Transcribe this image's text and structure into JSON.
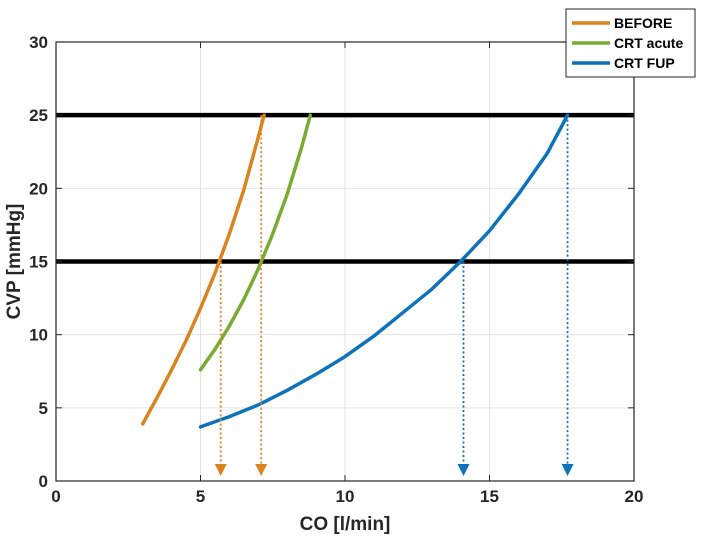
{
  "chart_data": {
    "type": "line",
    "xlabel": "CO [l/min]",
    "ylabel": "CVP [mmHg]",
    "xlim": [
      0,
      20
    ],
    "ylim": [
      0,
      30
    ],
    "x_ticks": [
      "0",
      "5",
      "10",
      "15",
      "20"
    ],
    "y_ticks": [
      "0",
      "5",
      "10",
      "15",
      "20",
      "25",
      "30"
    ],
    "grid": true,
    "legend_position": "top-right",
    "series": [
      {
        "name": "BEFORE",
        "color": "#D9841F",
        "points": [
          [
            3.0,
            3.9
          ],
          [
            3.5,
            5.7
          ],
          [
            4.0,
            7.6
          ],
          [
            4.5,
            9.6
          ],
          [
            5.0,
            11.8
          ],
          [
            5.5,
            14.2
          ],
          [
            6.0,
            16.9
          ],
          [
            6.5,
            19.9
          ],
          [
            7.0,
            23.5
          ],
          [
            7.2,
            25.0
          ]
        ]
      },
      {
        "name": "CRT acute",
        "color": "#77AC30",
        "points": [
          [
            5.0,
            7.6
          ],
          [
            5.5,
            9.0
          ],
          [
            6.0,
            10.6
          ],
          [
            6.5,
            12.4
          ],
          [
            7.0,
            14.5
          ],
          [
            7.5,
            16.9
          ],
          [
            8.0,
            19.6
          ],
          [
            8.5,
            22.8
          ],
          [
            8.8,
            25.0
          ]
        ]
      },
      {
        "name": "CRT FUP",
        "color": "#0C72BA",
        "points": [
          [
            5.0,
            3.7
          ],
          [
            6.0,
            4.4
          ],
          [
            7.0,
            5.2
          ],
          [
            8.0,
            6.2
          ],
          [
            9.0,
            7.3
          ],
          [
            10.0,
            8.5
          ],
          [
            11.0,
            9.9
          ],
          [
            12.0,
            11.5
          ],
          [
            13.0,
            13.1
          ],
          [
            14.0,
            15.0
          ],
          [
            15.0,
            17.1
          ],
          [
            16.0,
            19.6
          ],
          [
            17.0,
            22.4
          ],
          [
            17.7,
            25.0
          ]
        ]
      }
    ],
    "reference_lines": [
      {
        "y": 15,
        "color": "#000000"
      },
      {
        "y": 25,
        "color": "#000000"
      }
    ],
    "dotted_arrows": [
      {
        "series": "BEFORE",
        "x": 5.7,
        "y_from": 15,
        "color": "#D9841F"
      },
      {
        "series": "BEFORE",
        "x": 7.1,
        "y_from": 25,
        "color": "#D9841F"
      },
      {
        "series": "CRT FUP",
        "x": 14.1,
        "y_from": 15,
        "color": "#0C72BA"
      },
      {
        "series": "CRT FUP",
        "x": 17.7,
        "y_from": 25,
        "color": "#0C72BA"
      }
    ]
  }
}
